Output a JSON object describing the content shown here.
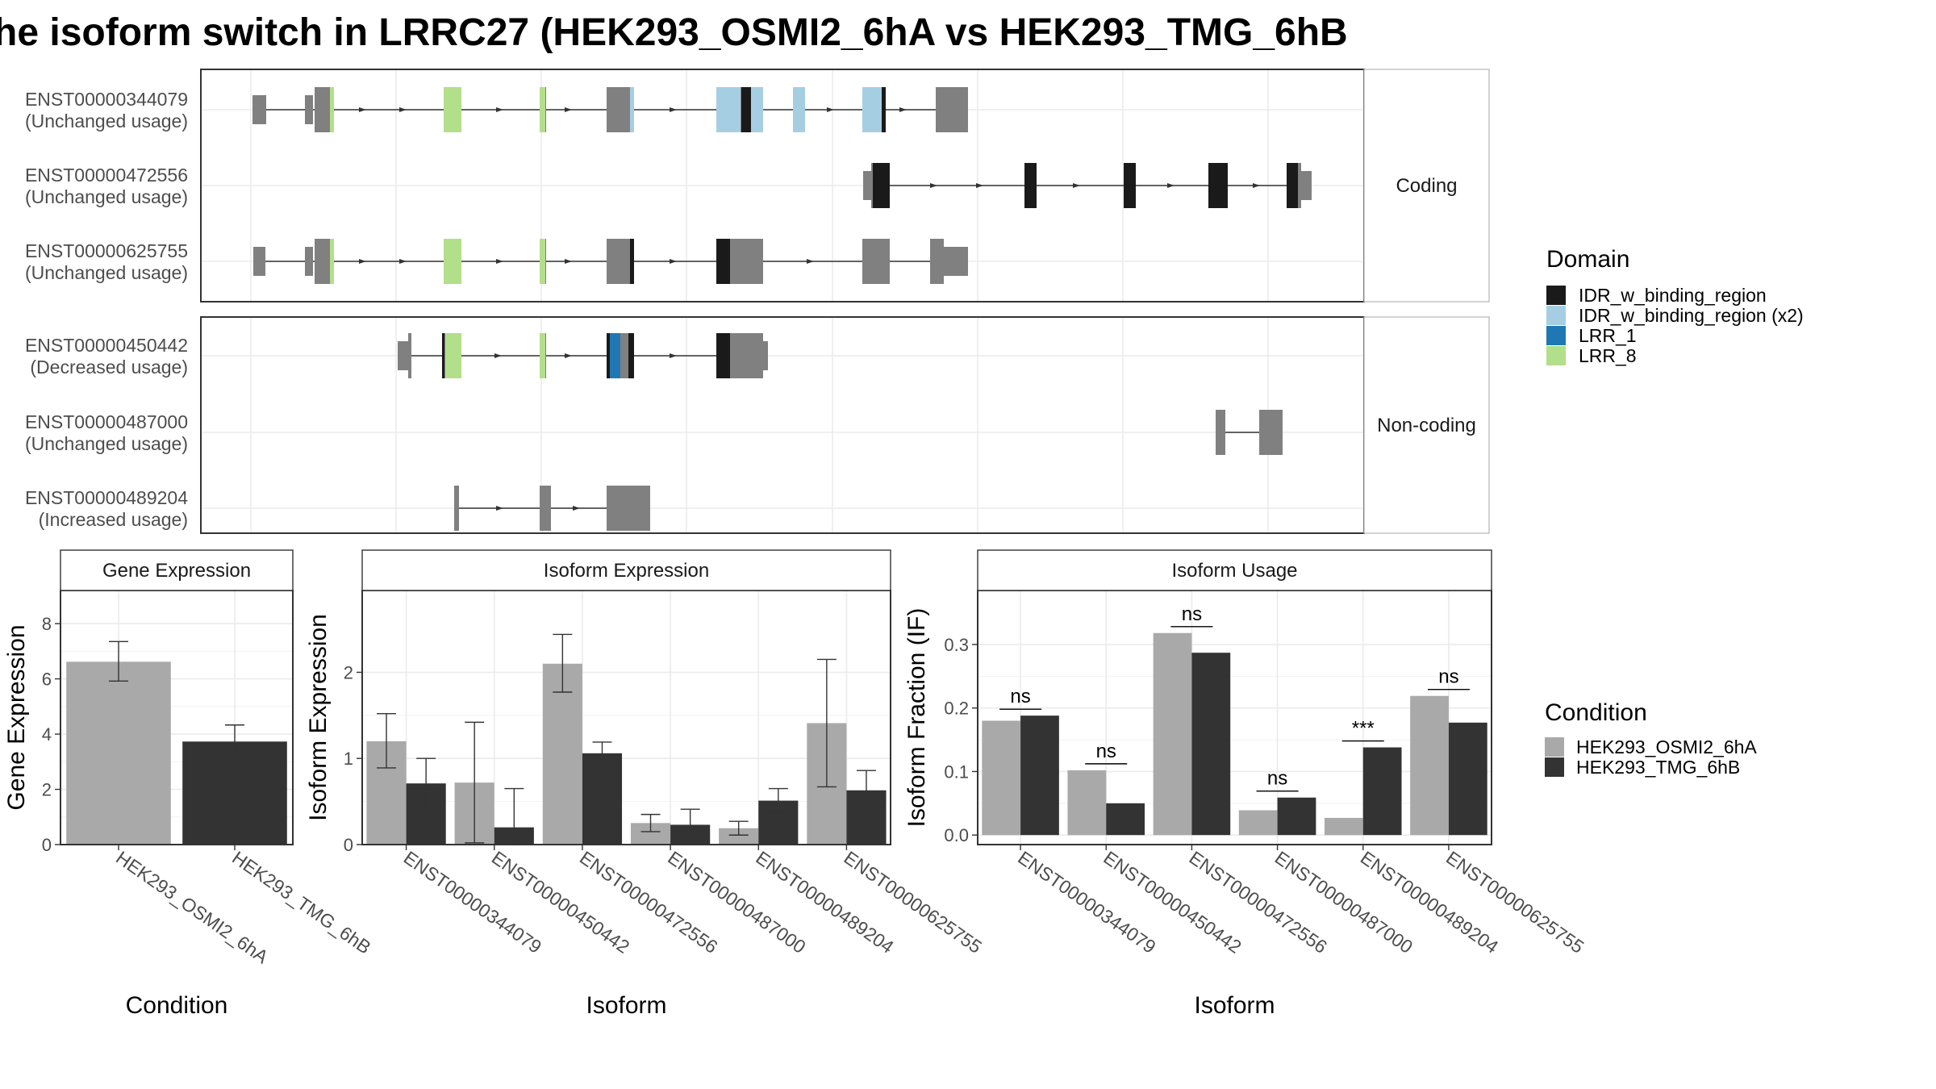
{
  "title": "he isoform switch in LRRC27 (HEK293_OSMI2_6hA vs HEK293_TMG_6hB",
  "colors": {
    "cond_a": "#a9a9a9",
    "cond_b": "#333333",
    "exon": "#808080",
    "IDR_w_binding_region": "#1a1a1a",
    "IDR_w_binding_region_x2": "#a6cee3",
    "LRR_1": "#1f78b4",
    "LRR_8": "#b2df8a"
  },
  "chart_data": [
    {
      "type": "gene-structure",
      "panels": [
        {
          "label": "Coding",
          "transcripts": [
            {
              "id": "ENST00000344079",
              "usage": "(Unchanged usage)"
            },
            {
              "id": "ENST00000472556",
              "usage": "(Unchanged usage)"
            },
            {
              "id": "ENST00000625755",
              "usage": "(Unchanged usage)"
            }
          ]
        },
        {
          "label": "Non-coding",
          "transcripts": [
            {
              "id": "ENST00000450442",
              "usage": "(Decreased usage)"
            },
            {
              "id": "ENST00000487000",
              "usage": "(Unchanged usage)"
            },
            {
              "id": "ENST00000489204",
              "usage": "(Increased usage)"
            }
          ]
        }
      ],
      "legend": {
        "title": "Domain",
        "entries": [
          {
            "key": "IDR_w_binding_region",
            "label": "IDR_w_binding_region"
          },
          {
            "key": "IDR_w_binding_region_x2",
            "label": "IDR_w_binding_region (x2)"
          },
          {
            "key": "LRR_1",
            "label": "LRR_1"
          },
          {
            "key": "LRR_8",
            "label": "LRR_8"
          }
        ]
      }
    },
    {
      "type": "bar",
      "title": "Gene Expression",
      "xlabel": "Condition",
      "ylabel": "Gene Expression",
      "ylim": [
        0,
        9.2
      ],
      "yticks": [
        0,
        2,
        4,
        6,
        8
      ],
      "categories": [
        "HEK293_OSMI2_6hA",
        "HEK293_TMG_6hB"
      ],
      "values": [
        6.62,
        3.73
      ],
      "errors": [
        [
          5.92,
          7.35
        ],
        [
          3.15,
          4.33
        ]
      ]
    },
    {
      "type": "bar",
      "title": "Isoform Expression",
      "xlabel": "Isoform",
      "ylabel": "Isoform Expression",
      "ylim": [
        0,
        2.95
      ],
      "yticks": [
        0,
        1,
        2
      ],
      "categories": [
        "ENST00000344079",
        "ENST00000450442",
        "ENST00000472556",
        "ENST00000487000",
        "ENST00000489204",
        "ENST00000625755"
      ],
      "series": [
        {
          "name": "HEK293_OSMI2_6hA",
          "values": [
            1.2,
            0.72,
            2.1,
            0.25,
            0.19,
            1.41
          ],
          "errors": [
            [
              0.89,
              1.52
            ],
            [
              0.02,
              1.42
            ],
            [
              1.77,
              2.44
            ],
            [
              0.15,
              0.35
            ],
            [
              0.11,
              0.27
            ],
            [
              0.67,
              2.15
            ]
          ]
        },
        {
          "name": "HEK293_TMG_6hB",
          "values": [
            0.71,
            0.2,
            1.06,
            0.23,
            0.51,
            0.63
          ],
          "errors": [
            [
              0.41,
              1.0
            ],
            [
              0.0,
              0.65
            ],
            [
              0.93,
              1.19
            ],
            [
              0.06,
              0.41
            ],
            [
              0.38,
              0.65
            ],
            [
              0.41,
              0.86
            ]
          ]
        }
      ]
    },
    {
      "type": "bar",
      "title": "Isoform Usage",
      "xlabel": "Isoform",
      "ylabel": "Isoform Fraction (IF)",
      "ylim": [
        -0.015,
        0.385
      ],
      "yticks": [
        0.0,
        0.1,
        0.2,
        0.3
      ],
      "ytick_labels": [
        "0.0",
        "0.1",
        "0.2",
        "0.3"
      ],
      "categories": [
        "ENST00000344079",
        "ENST00000450442",
        "ENST00000472556",
        "ENST00000487000",
        "ENST00000489204",
        "ENST00000625755"
      ],
      "series": [
        {
          "name": "HEK293_OSMI2_6hA",
          "values": [
            0.18,
            0.102,
            0.318,
            0.039,
            0.027,
            0.219
          ]
        },
        {
          "name": "HEK293_TMG_6hB",
          "values": [
            0.188,
            0.05,
            0.287,
            0.059,
            0.138,
            0.177
          ]
        }
      ],
      "annotations": [
        "ns",
        "ns",
        "ns",
        "ns",
        "***",
        "ns"
      ]
    }
  ],
  "condition_legend": {
    "title": "Condition",
    "entries": [
      {
        "key": "cond_a",
        "label": "HEK293_OSMI2_6hA"
      },
      {
        "key": "cond_b",
        "label": "HEK293_TMG_6hB"
      }
    ]
  }
}
